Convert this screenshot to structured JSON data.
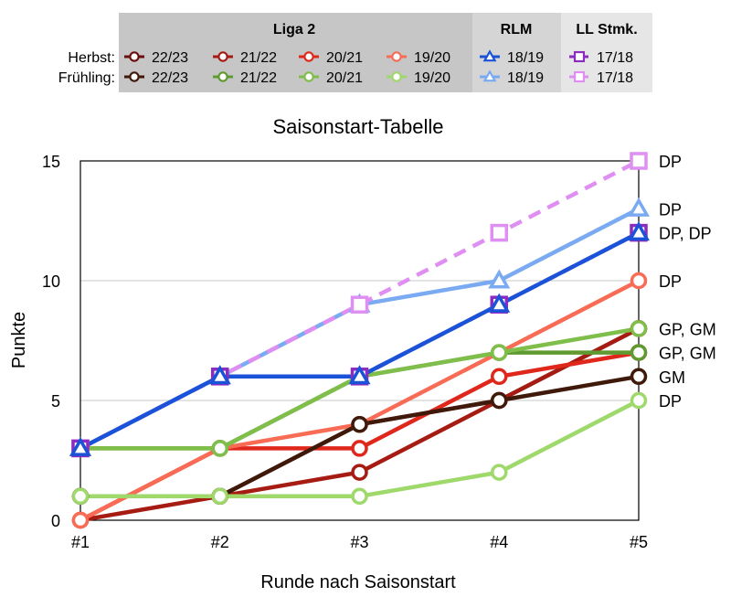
{
  "legend": {
    "row_labels": {
      "autumn": "Herbst:",
      "spring": "Frühling:"
    },
    "groups": [
      {
        "title": "Liga 2",
        "bg": "#c6c6c6"
      },
      {
        "title": "RLM",
        "bg": "#d5d5d5"
      },
      {
        "title": "LL Stmk.",
        "bg": "#e6e6e6"
      }
    ]
  },
  "chart_data": {
    "type": "line",
    "title": "Saisonstart-Tabelle",
    "xlabel": "Runde nach Saisonstart",
    "ylabel": "Punkte",
    "categories": [
      "#1",
      "#2",
      "#3",
      "#4",
      "#5"
    ],
    "ylim": [
      0,
      15
    ],
    "yticks": [
      0,
      5,
      10,
      15
    ],
    "grid": "horizontal",
    "series": [
      {
        "name": "22/23",
        "group": "Liga 2",
        "season": "Herbst",
        "color": "#6b0e0e",
        "marker": "circle",
        "dash": false,
        "values": [
          1,
          1,
          4,
          5,
          8
        ],
        "end_label": "GP, GM"
      },
      {
        "name": "21/22",
        "group": "Liga 2",
        "season": "Herbst",
        "color": "#a61b12",
        "marker": "circle",
        "dash": false,
        "values": [
          0,
          1,
          2,
          5,
          8
        ],
        "end_label": ""
      },
      {
        "name": "20/21",
        "group": "Liga 2",
        "season": "Herbst",
        "color": "#e0271b",
        "marker": "circle",
        "dash": false,
        "values": [
          0,
          3,
          3,
          6,
          7
        ],
        "end_label": "GP, GM"
      },
      {
        "name": "19/20",
        "group": "Liga 2",
        "season": "Herbst",
        "color": "#f86c55",
        "marker": "circle",
        "dash": false,
        "values": [
          0,
          3,
          4,
          7,
          10
        ],
        "end_label": "DP"
      },
      {
        "name": "22/23",
        "group": "Liga 2",
        "season": "Frühling",
        "color": "#3f1a0a",
        "marker": "circle",
        "dash": false,
        "values": [
          1,
          1,
          4,
          5,
          6
        ],
        "end_label": "GM"
      },
      {
        "name": "21/22",
        "group": "Liga 2",
        "season": "Frühling",
        "color": "#5e9a2f",
        "marker": "circle",
        "dash": false,
        "values": [
          3,
          3,
          6,
          7,
          7
        ],
        "end_label": ""
      },
      {
        "name": "20/21",
        "group": "Liga 2",
        "season": "Frühling",
        "color": "#7fbe4a",
        "marker": "circle",
        "dash": false,
        "values": [
          3,
          3,
          6,
          7,
          8
        ],
        "end_label": ""
      },
      {
        "name": "19/20",
        "group": "Liga 2",
        "season": "Frühling",
        "color": "#9fd86b",
        "marker": "circle",
        "dash": false,
        "values": [
          1,
          1,
          1,
          2,
          5
        ],
        "end_label": "DP"
      },
      {
        "name": "18/19",
        "group": "RLM",
        "season": "Frühling",
        "color": "#7aaaf2",
        "marker": "triangle",
        "dash": false,
        "values": [
          3,
          6,
          9,
          10,
          13
        ],
        "end_label": "DP"
      },
      {
        "name": "17/18",
        "group": "LL Stmk.",
        "season": "Frühling",
        "color": "#df8ff2",
        "marker": "square",
        "dash": true,
        "values": [
          3,
          6,
          9,
          12,
          15
        ],
        "end_label": "DP"
      },
      {
        "name": "17/18",
        "group": "LL Stmk.",
        "season": "Herbst",
        "color": "#8b2bc0",
        "marker": "square",
        "dash": true,
        "values": [
          3,
          6,
          6,
          9,
          12
        ],
        "end_label": ""
      },
      {
        "name": "18/19",
        "group": "RLM",
        "season": "Herbst",
        "color": "#1a53d8",
        "marker": "triangle",
        "dash": false,
        "values": [
          3,
          6,
          6,
          9,
          12
        ],
        "end_label": "DP, DP"
      }
    ]
  }
}
